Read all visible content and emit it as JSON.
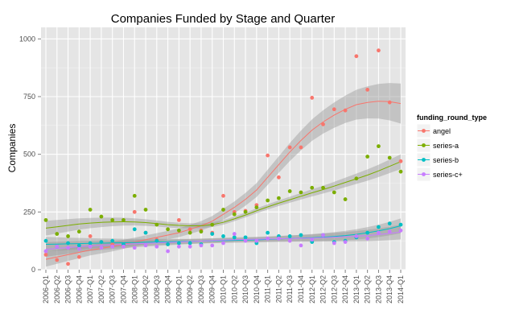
{
  "chart_data": {
    "type": "scatter",
    "title": "Companies Funded by Stage and Quarter",
    "xlabel": "",
    "ylabel": "Companies",
    "ylim": [
      0,
      1050
    ],
    "yticks": [
      0,
      250,
      500,
      750,
      1000
    ],
    "categories": [
      "2006-Q1",
      "2006-Q2",
      "2006-Q3",
      "2006-Q4",
      "2007-Q1",
      "2007-Q2",
      "2007-Q3",
      "2007-Q4",
      "2008-Q1",
      "2008-Q2",
      "2008-Q3",
      "2008-Q4",
      "2009-Q1",
      "2009-Q2",
      "2009-Q3",
      "2009-Q4",
      "2010-Q1",
      "2010-Q2",
      "2010-Q3",
      "2010-Q4",
      "2011-Q1",
      "2011-Q2",
      "2011-Q3",
      "2011-Q4",
      "2012-Q1",
      "2012-Q2",
      "2012-Q3",
      "2012-Q4",
      "2013-Q1",
      "2013-Q2",
      "2013-Q3",
      "2013-Q4",
      "2014-Q1"
    ],
    "legend_title": "funding_round_type",
    "legend_position": "right",
    "grid": true,
    "series": [
      {
        "name": "angel",
        "color": "#f8766d",
        "values": [
          65,
          42,
          25,
          55,
          145,
          120,
          110,
          100,
          250,
          160,
          130,
          110,
          215,
          175,
          170,
          160,
          320,
          250,
          255,
          280,
          495,
          400,
          530,
          530,
          745,
          630,
          695,
          690,
          925,
          780,
          950,
          725,
          470
        ],
        "trend": [
          45,
          55,
          65,
          75,
          85,
          92,
          100,
          110,
          120,
          130,
          140,
          150,
          160,
          175,
          190,
          210,
          240,
          270,
          305,
          345,
          400,
          455,
          510,
          560,
          605,
          640,
          670,
          695,
          715,
          725,
          730,
          728,
          720
        ]
      },
      {
        "name": "series-a",
        "color": "#7cae00",
        "values": [
          215,
          155,
          145,
          165,
          260,
          230,
          215,
          215,
          320,
          260,
          195,
          175,
          170,
          160,
          165,
          195,
          260,
          240,
          250,
          270,
          300,
          310,
          340,
          335,
          355,
          355,
          335,
          305,
          395,
          490,
          535,
          485,
          425
        ],
        "trend": [
          180,
          186,
          192,
          198,
          202,
          205,
          207,
          208,
          207,
          204,
          200,
          195,
          192,
          190,
          190,
          195,
          205,
          220,
          237,
          255,
          272,
          288,
          303,
          318,
          333,
          347,
          362,
          378,
          394,
          410,
          428,
          448,
          468
        ]
      },
      {
        "name": "series-b",
        "color": "#00bfc4",
        "values": [
          125,
          100,
          115,
          105,
          115,
          120,
          125,
          110,
          175,
          160,
          125,
          110,
          115,
          115,
          110,
          155,
          145,
          140,
          140,
          115,
          160,
          145,
          145,
          150,
          120,
          150,
          120,
          125,
          140,
          160,
          185,
          200,
          195
        ],
        "trend": [
          110,
          111,
          112,
          113,
          114,
          115,
          116,
          117,
          118,
          119,
          120,
          121,
          122,
          123,
          124,
          125,
          126,
          127,
          128,
          129,
          131,
          133,
          135,
          137,
          139,
          141,
          144,
          148,
          153,
          160,
          168,
          178,
          190
        ]
      },
      {
        "name": "series-c+",
        "color": "#c77cff",
        "values": [
          80,
          100,
          95,
          90,
          100,
          95,
          100,
          100,
          95,
          105,
          100,
          80,
          100,
          100,
          105,
          105,
          115,
          155,
          125,
          125,
          135,
          135,
          125,
          105,
          130,
          150,
          115,
          120,
          145,
          135,
          160,
          165,
          170
        ],
        "trend": [
          88,
          92,
          96,
          100,
          103,
          106,
          108,
          110,
          112,
          114,
          116,
          118,
          120,
          122,
          124,
          126,
          128,
          130,
          131,
          132,
          133,
          134,
          135,
          136,
          137,
          139,
          141,
          143,
          145,
          148,
          152,
          157,
          163
        ]
      }
    ]
  }
}
